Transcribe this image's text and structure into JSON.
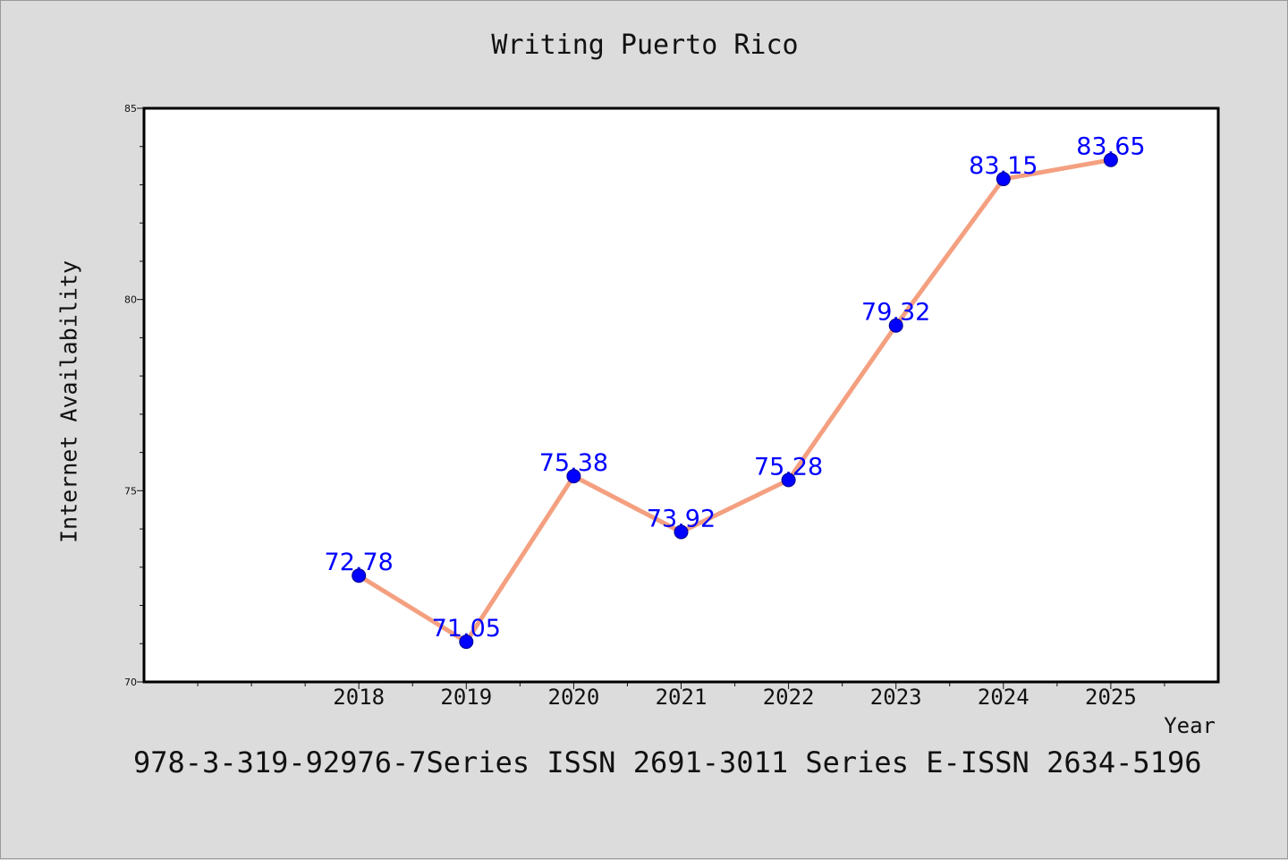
{
  "title": "Writing Puerto Rico",
  "footnote": "978-3-319-92976-7Series ISSN 2691-3011 Series E-ISSN 2634-5196",
  "colors": {
    "background": "#dcdcdc",
    "line": "#f4a080",
    "marker": "#0000ff",
    "data_label": "#0000ff"
  },
  "chart_data": {
    "type": "line",
    "title": "Writing Puerto Rico",
    "xlabel": "Year",
    "ylabel": "Internet Availability",
    "x": [
      2018,
      2019,
      2020,
      2021,
      2022,
      2023,
      2024,
      2025
    ],
    "values": [
      72.78,
      71.05,
      75.38,
      73.92,
      75.28,
      79.32,
      83.15,
      83.65
    ],
    "data_labels": [
      "72.78",
      "71.05",
      "75.38",
      "73.92",
      "75.28",
      "79.32",
      "83.15",
      "83.65"
    ],
    "x_tick_labels": [
      "2018",
      "2019",
      "2020",
      "2021",
      "2022",
      "2023",
      "2024",
      "2025"
    ],
    "y_tick_labels": [
      "70",
      "75",
      "80",
      "85"
    ],
    "y_ticks": [
      70,
      75,
      80,
      85
    ],
    "ylim": [
      70,
      85
    ],
    "xlim": [
      2016,
      2026
    ],
    "grid": false,
    "legend": "none"
  }
}
